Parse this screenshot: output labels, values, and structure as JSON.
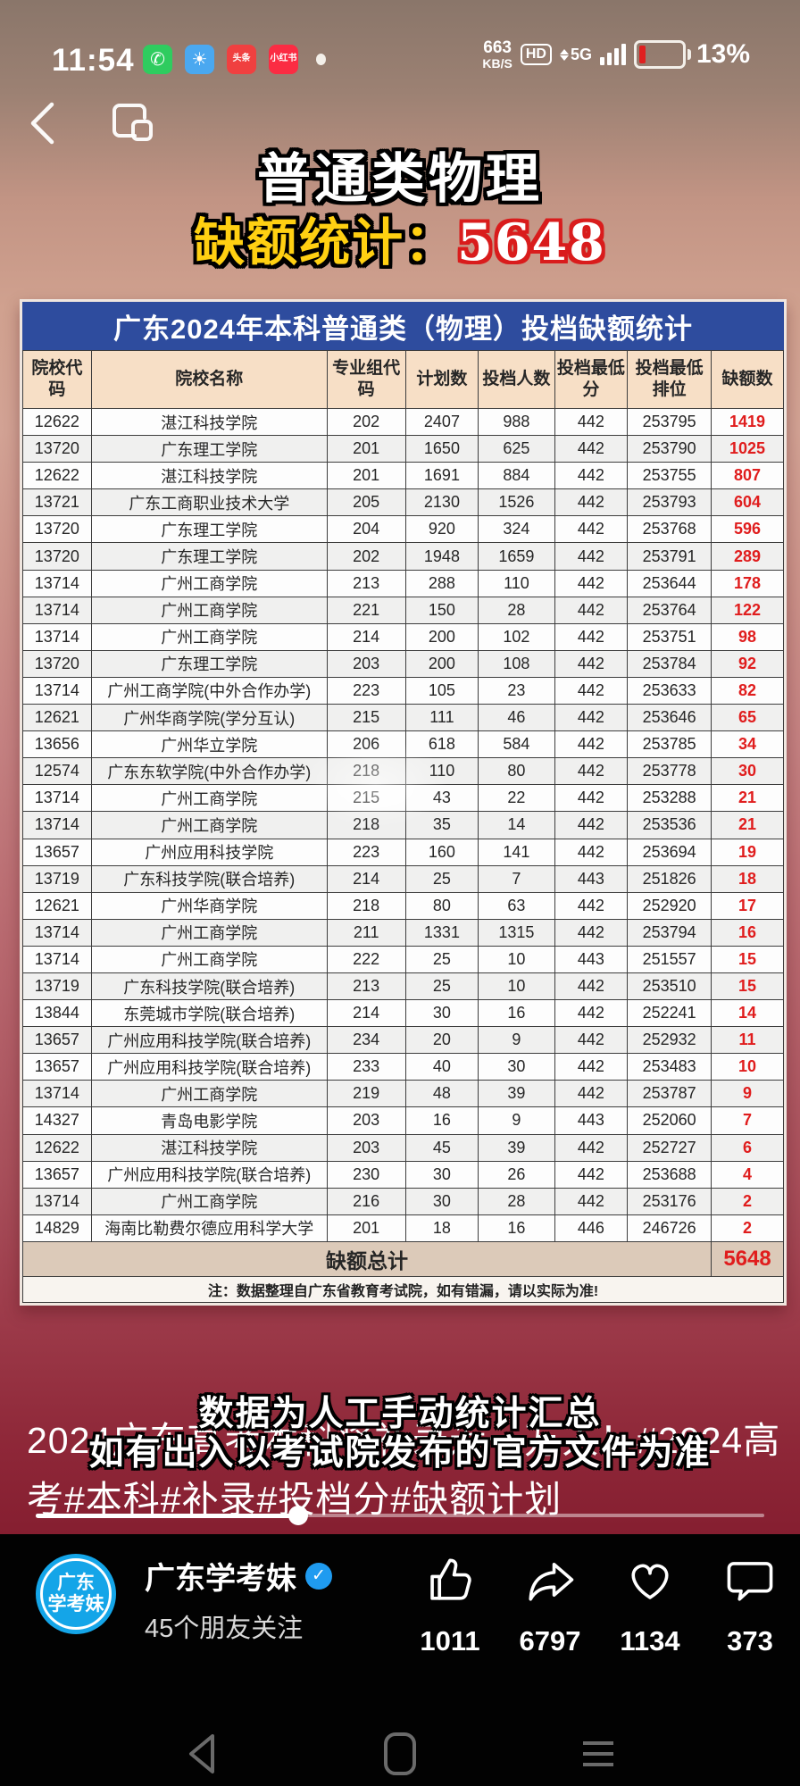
{
  "status_bar": {
    "time": "11:54",
    "app_icons": [
      {
        "name": "phone-icon",
        "glyph": "✆",
        "bg": "#2fcc5f",
        "cls": "glyph"
      },
      {
        "name": "weather-icon",
        "glyph": "☀",
        "bg": "#4aa8f0",
        "cls": "glyph"
      },
      {
        "name": "toutiao-icon",
        "glyph": "头条",
        "bg": "#f04040",
        "cls": "small-cn"
      },
      {
        "name": "xiaohongshu-icon",
        "glyph": "小红书",
        "bg": "#fb2c43",
        "cls": "small-cn"
      }
    ],
    "net_speed_value": "663",
    "net_speed_unit": "KB/S",
    "hd_label": "HD",
    "network_label": "5G",
    "battery_percent": "13%"
  },
  "video_title": {
    "line1": "普通类物理",
    "line2_label": "缺额统计：",
    "line2_value": "5648"
  },
  "table": {
    "title": "广东2024年本科普通类（物理）投档缺额统计",
    "headers": [
      "院校代码",
      "院校名称",
      "专业组代码",
      "计划数",
      "投档人数",
      "投档最低分",
      "投档最低排位",
      "缺额数"
    ],
    "rows": [
      [
        "12622",
        "湛江科技学院",
        "202",
        "2407",
        "988",
        "442",
        "253795",
        "1419"
      ],
      [
        "13720",
        "广东理工学院",
        "201",
        "1650",
        "625",
        "442",
        "253790",
        "1025"
      ],
      [
        "12622",
        "湛江科技学院",
        "201",
        "1691",
        "884",
        "442",
        "253755",
        "807"
      ],
      [
        "13721",
        "广东工商职业技术大学",
        "205",
        "2130",
        "1526",
        "442",
        "253793",
        "604"
      ],
      [
        "13720",
        "广东理工学院",
        "204",
        "920",
        "324",
        "442",
        "253768",
        "596"
      ],
      [
        "13720",
        "广东理工学院",
        "202",
        "1948",
        "1659",
        "442",
        "253791",
        "289"
      ],
      [
        "13714",
        "广州工商学院",
        "213",
        "288",
        "110",
        "442",
        "253644",
        "178"
      ],
      [
        "13714",
        "广州工商学院",
        "221",
        "150",
        "28",
        "442",
        "253764",
        "122"
      ],
      [
        "13714",
        "广州工商学院",
        "214",
        "200",
        "102",
        "442",
        "253751",
        "98"
      ],
      [
        "13720",
        "广东理工学院",
        "203",
        "200",
        "108",
        "442",
        "253784",
        "92"
      ],
      [
        "13714",
        "广州工商学院(中外合作办学)",
        "223",
        "105",
        "23",
        "442",
        "253633",
        "82"
      ],
      [
        "12621",
        "广州华商学院(学分互认)",
        "215",
        "111",
        "46",
        "442",
        "253646",
        "65"
      ],
      [
        "13656",
        "广州华立学院",
        "206",
        "618",
        "584",
        "442",
        "253785",
        "34"
      ],
      [
        "12574",
        "广东东软学院(中外合作办学)",
        "218",
        "110",
        "80",
        "442",
        "253778",
        "30"
      ],
      [
        "13714",
        "广州工商学院",
        "215",
        "43",
        "22",
        "442",
        "253288",
        "21"
      ],
      [
        "13714",
        "广州工商学院",
        "218",
        "35",
        "14",
        "442",
        "253536",
        "21"
      ],
      [
        "13657",
        "广州应用科技学院",
        "223",
        "160",
        "141",
        "442",
        "253694",
        "19"
      ],
      [
        "13719",
        "广东科技学院(联合培养)",
        "214",
        "25",
        "7",
        "443",
        "251826",
        "18"
      ],
      [
        "12621",
        "广州华商学院",
        "218",
        "80",
        "63",
        "442",
        "252920",
        "17"
      ],
      [
        "13714",
        "广州工商学院",
        "211",
        "1331",
        "1315",
        "442",
        "253794",
        "16"
      ],
      [
        "13714",
        "广州工商学院",
        "222",
        "25",
        "10",
        "443",
        "251557",
        "15"
      ],
      [
        "13719",
        "广东科技学院(联合培养)",
        "213",
        "25",
        "10",
        "442",
        "253510",
        "15"
      ],
      [
        "13844",
        "东莞城市学院(联合培养)",
        "214",
        "30",
        "16",
        "442",
        "252241",
        "14"
      ],
      [
        "13657",
        "广州应用科技学院(联合培养)",
        "234",
        "20",
        "9",
        "442",
        "252932",
        "11"
      ],
      [
        "13657",
        "广州应用科技学院(联合培养)",
        "233",
        "40",
        "30",
        "442",
        "253483",
        "10"
      ],
      [
        "13714",
        "广州工商学院",
        "219",
        "48",
        "39",
        "442",
        "253787",
        "9"
      ],
      [
        "14327",
        "青岛电影学院",
        "203",
        "16",
        "9",
        "443",
        "252060",
        "7"
      ],
      [
        "12622",
        "湛江科技学院",
        "203",
        "45",
        "39",
        "442",
        "252727",
        "6"
      ],
      [
        "13657",
        "广州应用科技学院(联合培养)",
        "230",
        "30",
        "26",
        "442",
        "253688",
        "4"
      ],
      [
        "13714",
        "广州工商学院",
        "216",
        "30",
        "28",
        "442",
        "253176",
        "2"
      ],
      [
        "14829",
        "海南比勒费尔德应用科学大学",
        "201",
        "18",
        "16",
        "446",
        "246726",
        "2"
      ]
    ],
    "total_label": "缺额总计",
    "total_value": "5648",
    "note": "注：数据整理自广东省教育考试院，如有错漏，请以实际为准!"
  },
  "video_text_overlay": {
    "line1": "数据为人工手动统计汇总",
    "line2": "如有出入以考试院发布的官方文件为准"
  },
  "caption": "2024广东高考本科将补录近一万人！#2024高考#本科#补录#投档分#缺额计划",
  "progress_percent": 36,
  "author": {
    "avatar_text_top": "广东",
    "avatar_text_bottom": "学考妹",
    "name": "广东学考妹",
    "followers": "45个朋友关注"
  },
  "engagement": {
    "like": "1011",
    "share": "6797",
    "favorite": "1134",
    "comment": "373"
  },
  "colors": {
    "accent_red": "#e01d1d",
    "table_header_blue": "#2e4c9e",
    "avatar_blue": "#14a5e8",
    "highlight_yellow": "#ffd012"
  }
}
